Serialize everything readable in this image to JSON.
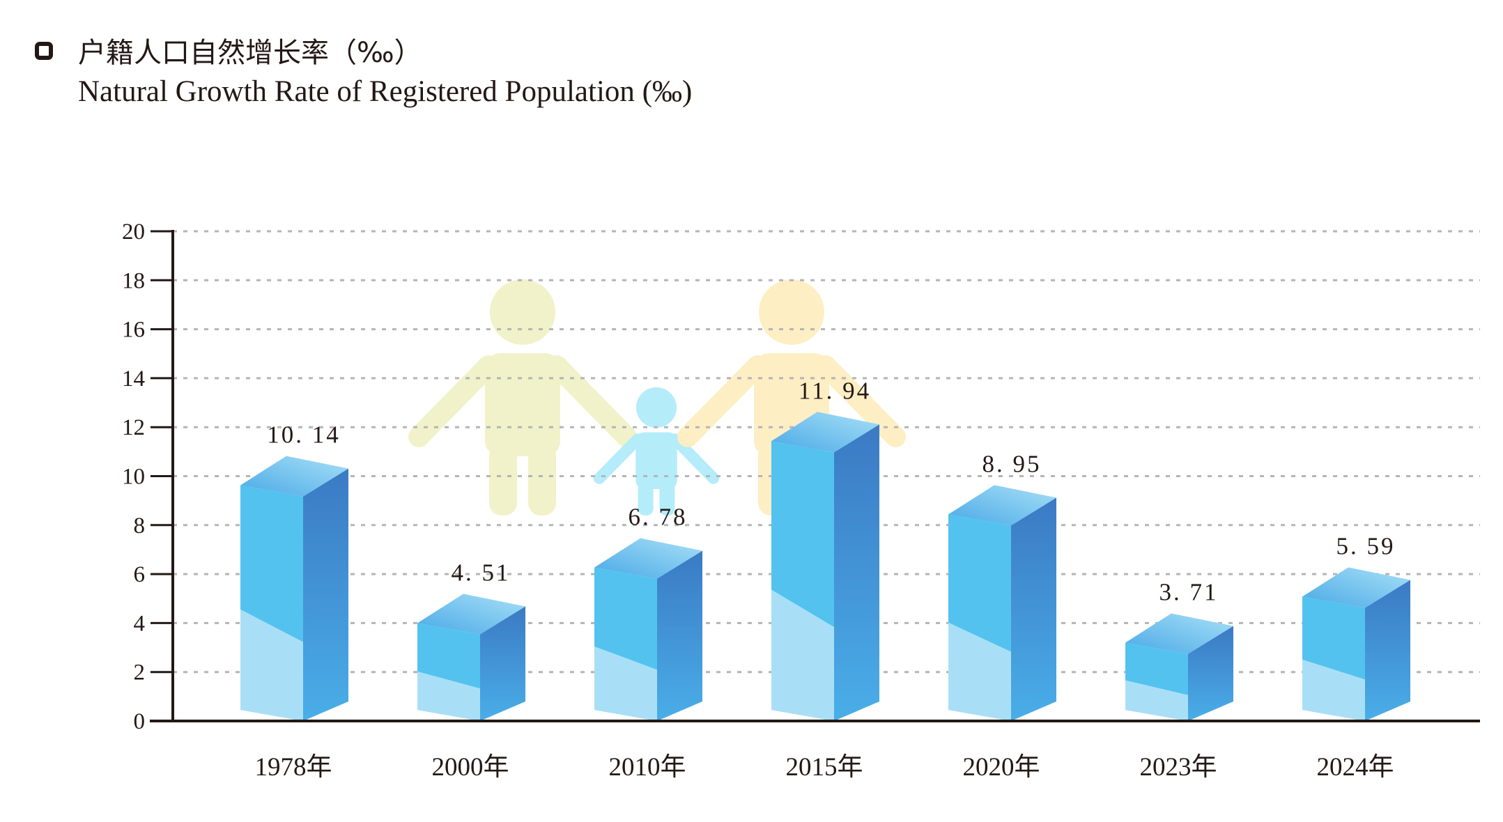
{
  "title": {
    "cn": "户籍人口自然增长率（‰）",
    "en": "Natural Growth Rate of Registered Population (‰)"
  },
  "chart_data": {
    "type": "bar",
    "title": "户籍人口自然增长率（‰） Natural Growth Rate of Registered Population (‰)",
    "categories": [
      "1978年",
      "2000年",
      "2010年",
      "2015年",
      "2020年",
      "2023年",
      "2024年"
    ],
    "values": [
      10.14,
      4.51,
      6.78,
      11.94,
      8.95,
      3.71,
      5.59
    ],
    "value_labels": [
      "10. 14",
      "4. 51",
      "6. 78",
      "11. 94",
      "8. 95",
      "3. 71",
      "5. 59"
    ],
    "y_ticks": [
      0,
      2,
      4,
      6,
      8,
      10,
      12,
      14,
      16,
      18,
      20
    ],
    "ylim": [
      0,
      20
    ],
    "grid": true,
    "bar_style": "3d",
    "colors": {
      "front_main": "#53c2ef",
      "front_light": "#a9dff6",
      "side": "#3b8fd2",
      "top": "#6ec7f0",
      "grid": "#b5b5b5",
      "axis": "#231815"
    }
  },
  "decoration": {
    "icons": [
      "adult-figure-icon",
      "child-figure-icon",
      "adult-figure-icon"
    ],
    "colors": [
      "#f1f2c9",
      "#b4ecfa",
      "#fdeec4"
    ]
  }
}
